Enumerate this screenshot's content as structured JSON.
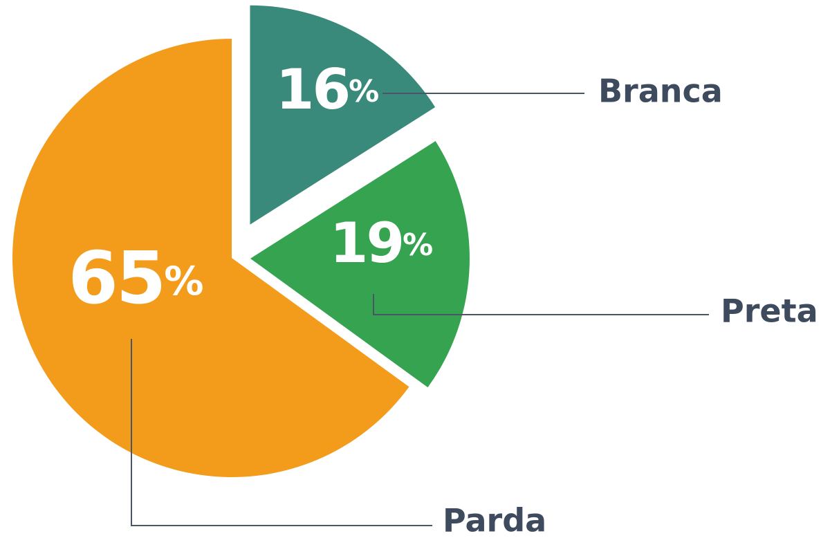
{
  "chart_data": {
    "type": "pie",
    "categories": [
      "Branca",
      "Preta",
      "Parda"
    ],
    "values": [
      16,
      19,
      65
    ],
    "value_labels": [
      "16%",
      "19%",
      "65%"
    ],
    "colors": [
      "#3a8a7c",
      "#36a350",
      "#f39c1c"
    ]
  }
}
